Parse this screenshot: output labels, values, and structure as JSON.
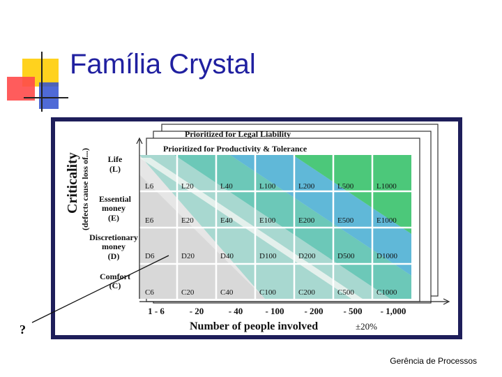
{
  "slide": {
    "title": "Família Crystal",
    "footer": "Gerência de Processos",
    "question_mark": "?"
  },
  "figure": {
    "back_tab_label": "Prioritized for Legal Liability",
    "front_tab_label": "Prioritized for Productivity & Tolerance",
    "y_axis_title": "Criticality",
    "y_axis_subtitle": "(defects cause loss of...)",
    "x_axis_title": "Number of people involved",
    "x_axis_tolerance": "±20%",
    "rows": [
      {
        "name": "Life",
        "letter": "(L)",
        "cells": [
          "L6",
          "L20",
          "L40",
          "L100",
          "L200",
          "L500",
          "L1000"
        ]
      },
      {
        "name": "Essential money",
        "letter": "(E)",
        "cells": [
          "E6",
          "E20",
          "E40",
          "E100",
          "E200",
          "E500",
          "E1000"
        ]
      },
      {
        "name": "Discretionary money",
        "letter": "(D)",
        "cells": [
          "D6",
          "D20",
          "D40",
          "D100",
          "D200",
          "D500",
          "D1000"
        ]
      },
      {
        "name": "Comfort",
        "letter": "(C)",
        "cells": [
          "C6",
          "C20",
          "C40",
          "C100",
          "C200",
          "C500",
          "C1000"
        ]
      }
    ],
    "x_ticks": [
      "1 - 6",
      "- 20",
      "- 40",
      "- 100",
      "- 200",
      "- 500",
      "- 1,000"
    ],
    "colors": {
      "frame": "#1e1e5a",
      "title": "#2020a0",
      "band_teal": "#3cb8a8",
      "band_green": "#4cc87a",
      "band_blue": "#60b8d8"
    }
  }
}
